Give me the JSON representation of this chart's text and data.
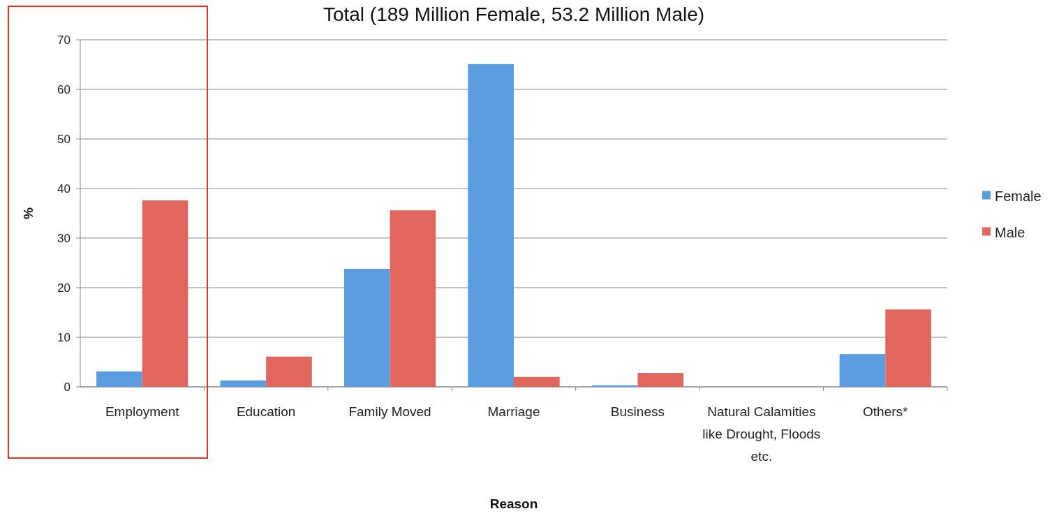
{
  "chart_data": {
    "type": "bar",
    "title": "Total (189 Million Female, 53.2 Million Male)",
    "xlabel": "Reason",
    "ylabel": "%",
    "categories": [
      "Employment",
      "Education",
      "Family Moved",
      "Marriage",
      "Business",
      "Natural Calamities like Drought, Floods etc.",
      "Others*"
    ],
    "series": [
      {
        "name": "Female",
        "color": "#5b9ce0",
        "values": [
          3.1,
          1.3,
          23.8,
          65.1,
          0.3,
          0,
          6.6
        ]
      },
      {
        "name": "Male",
        "color": "#e0665e",
        "values": [
          37.6,
          6.1,
          35.6,
          2.0,
          2.8,
          0,
          15.6
        ]
      }
    ],
    "ylim": [
      0,
      70
    ],
    "yticks": [
      0,
      10,
      20,
      30,
      40,
      50,
      60,
      70
    ],
    "grid": "y",
    "legend": "right"
  }
}
